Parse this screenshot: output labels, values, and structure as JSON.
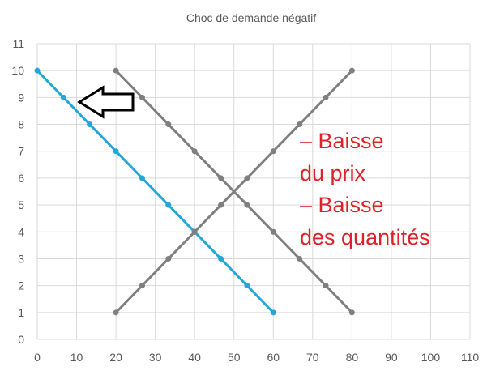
{
  "chart_data": {
    "type": "line",
    "title": "Choc de demande négatif",
    "xlabel": "",
    "ylabel": "",
    "xlim": [
      0,
      110
    ],
    "ylim": [
      0,
      11
    ],
    "xticks": [
      0,
      10,
      20,
      30,
      40,
      50,
      60,
      70,
      80,
      90,
      100,
      110
    ],
    "yticks": [
      0,
      1,
      2,
      3,
      4,
      5,
      6,
      7,
      8,
      9,
      10,
      11
    ],
    "grid": true,
    "series": [
      {
        "color": "#22a7d8",
        "x": [
          0,
          6.67,
          13.33,
          20,
          26.67,
          33.33,
          40,
          46.67,
          53.33,
          60
        ],
        "y": [
          10,
          9,
          8,
          7,
          6,
          5,
          4,
          3,
          2,
          1
        ]
      },
      {
        "color": "#7f7f7f",
        "x": [
          20,
          26.67,
          33.33,
          40,
          46.67,
          53.33,
          60,
          66.67,
          73.33,
          80
        ],
        "y": [
          10,
          9,
          8,
          7,
          6,
          5,
          4,
          3,
          2,
          1
        ]
      },
      {
        "color": "#7f7f7f",
        "x": [
          20,
          26.67,
          33.33,
          40,
          46.67,
          53.33,
          60,
          66.67,
          73.33,
          80
        ],
        "y": [
          1,
          2,
          3,
          4,
          5,
          6,
          7,
          8,
          9,
          10
        ]
      }
    ],
    "annotations": [
      "– Baisse",
      "du prix",
      "– Baisse",
      "des quantités"
    ],
    "arrow_direction": "left"
  }
}
